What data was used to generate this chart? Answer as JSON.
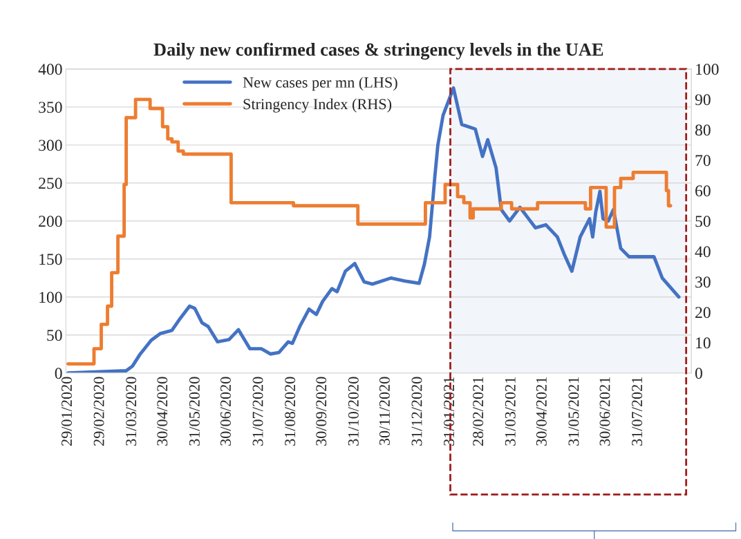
{
  "chart_data": {
    "type": "line",
    "title": "Daily new confirmed cases & stringency levels in the UAE",
    "series": [
      {
        "name": "New cases per mn (LHS)",
        "color": "#4472c4",
        "x": [
          "2020-01-29",
          "2020-03-25",
          "2020-03-31",
          "2020-04-07",
          "2020-04-18",
          "2020-04-27",
          "2020-05-08",
          "2020-05-15",
          "2020-05-25",
          "2020-05-30",
          "2020-06-06",
          "2020-06-12",
          "2020-06-21",
          "2020-07-02",
          "2020-07-11",
          "2020-07-22",
          "2020-08-02",
          "2020-08-11",
          "2020-08-19",
          "2020-08-28",
          "2020-09-01",
          "2020-09-08",
          "2020-09-17",
          "2020-09-24",
          "2020-09-30",
          "2020-10-09",
          "2020-10-14",
          "2020-10-22",
          "2020-10-31",
          "2020-11-09",
          "2020-11-17",
          "2020-12-05",
          "2020-12-18",
          "2021-01-01",
          "2021-01-06",
          "2021-01-11",
          "2021-01-16",
          "2021-01-19",
          "2021-01-24",
          "2021-02-03",
          "2021-02-11",
          "2021-02-24",
          "2021-03-03",
          "2021-03-08",
          "2021-03-16",
          "2021-03-21",
          "2021-03-29",
          "2021-04-08",
          "2021-04-23",
          "2021-05-03",
          "2021-05-14",
          "2021-05-21",
          "2021-05-28",
          "2021-06-05",
          "2021-06-14",
          "2021-06-17",
          "2021-06-20",
          "2021-06-24",
          "2021-06-27",
          "2021-07-02",
          "2021-07-07",
          "2021-07-14",
          "2021-07-22",
          "2021-08-15",
          "2021-08-23",
          "2021-09-08"
        ],
        "values": [
          0,
          3,
          9,
          24,
          43,
          52,
          56,
          70,
          88,
          85,
          66,
          61,
          41,
          44,
          57,
          32,
          32,
          25,
          27,
          41,
          39,
          61,
          84,
          77,
          94,
          111,
          107,
          134,
          144,
          120,
          117,
          125,
          121,
          118,
          143,
          179,
          257,
          300,
          339,
          375,
          327,
          321,
          285,
          307,
          270,
          215,
          200,
          218,
          191,
          195,
          179,
          155,
          134,
          179,
          203,
          179,
          212,
          239,
          203,
          200,
          215,
          164,
          153,
          153,
          125,
          100
        ]
      },
      {
        "name": "Stringency Index (RHS)",
        "color": "#ed7d31",
        "type": "step",
        "axis": "y2",
        "x": [
          "2020-01-29",
          "2020-02-23",
          "2020-03-01",
          "2020-03-07",
          "2020-03-11",
          "2020-03-17",
          "2020-03-23",
          "2020-03-25",
          "2020-04-03",
          "2020-04-17",
          "2020-04-29",
          "2020-05-04",
          "2020-05-08",
          "2020-05-14",
          "2020-05-19",
          "2020-07-04",
          "2020-09-02",
          "2020-11-03",
          "2021-01-07",
          "2021-01-26",
          "2021-02-07",
          "2021-02-13",
          "2021-02-19",
          "2021-02-22",
          "2021-03-21",
          "2021-03-31",
          "2021-04-25",
          "2021-06-10",
          "2021-06-15",
          "2021-06-30",
          "2021-07-08",
          "2021-07-14",
          "2021-07-26",
          "2021-08-27",
          "2021-08-29",
          "2021-08-31"
        ],
        "values": [
          3,
          8,
          16,
          22,
          33,
          45,
          62,
          84,
          90,
          87,
          81,
          77,
          76,
          73,
          72,
          56,
          55,
          49,
          56,
          62,
          58,
          56,
          51,
          54,
          56,
          54,
          56,
          54,
          61,
          48,
          61,
          64,
          66,
          60,
          55,
          55
        ]
      }
    ],
    "xlim": [
      "2020-01-27",
      "2021-09-20"
    ],
    "xticks": [
      {
        "value": "2020-01-29",
        "label": "29/01/2020"
      },
      {
        "value": "2020-02-29",
        "label": "29/02/2020"
      },
      {
        "value": "2020-03-31",
        "label": "31/03/2020"
      },
      {
        "value": "2020-04-30",
        "label": "30/04/2020"
      },
      {
        "value": "2020-05-31",
        "label": "31/05/2020"
      },
      {
        "value": "2020-06-30",
        "label": "30/06/2020"
      },
      {
        "value": "2020-07-31",
        "label": "31/07/2020"
      },
      {
        "value": "2020-08-31",
        "label": "31/08/2020"
      },
      {
        "value": "2020-09-30",
        "label": "30/09/2020"
      },
      {
        "value": "2020-10-31",
        "label": "31/10/2020"
      },
      {
        "value": "2020-11-30",
        "label": "30/11/2020"
      },
      {
        "value": "2020-12-31",
        "label": "31/12/2020"
      },
      {
        "value": "2021-01-31",
        "label": "31/01/2021"
      },
      {
        "value": "2021-02-28",
        "label": "28/02/2021"
      },
      {
        "value": "2021-03-31",
        "label": "31/03/2021"
      },
      {
        "value": "2021-04-30",
        "label": "30/04/2021"
      },
      {
        "value": "2021-05-31",
        "label": "31/05/2021"
      },
      {
        "value": "2021-06-30",
        "label": "30/06/2021"
      },
      {
        "value": "2021-07-31",
        "label": "31/07/2021"
      }
    ],
    "ylim": [
      0,
      400
    ],
    "yticks": [
      0,
      50,
      100,
      150,
      200,
      250,
      300,
      350,
      400
    ],
    "y2lim": [
      0,
      100
    ],
    "y2ticks": [
      0,
      10,
      20,
      30,
      40,
      50,
      60,
      70,
      80,
      90,
      100
    ],
    "bands": [
      {
        "axis": "x",
        "from": "2021-01-31",
        "to": "2021-09-15",
        "color": "#f2f5fa"
      }
    ],
    "grid": "y",
    "legend": "top",
    "line_style": "solid",
    "marker": "none"
  }
}
